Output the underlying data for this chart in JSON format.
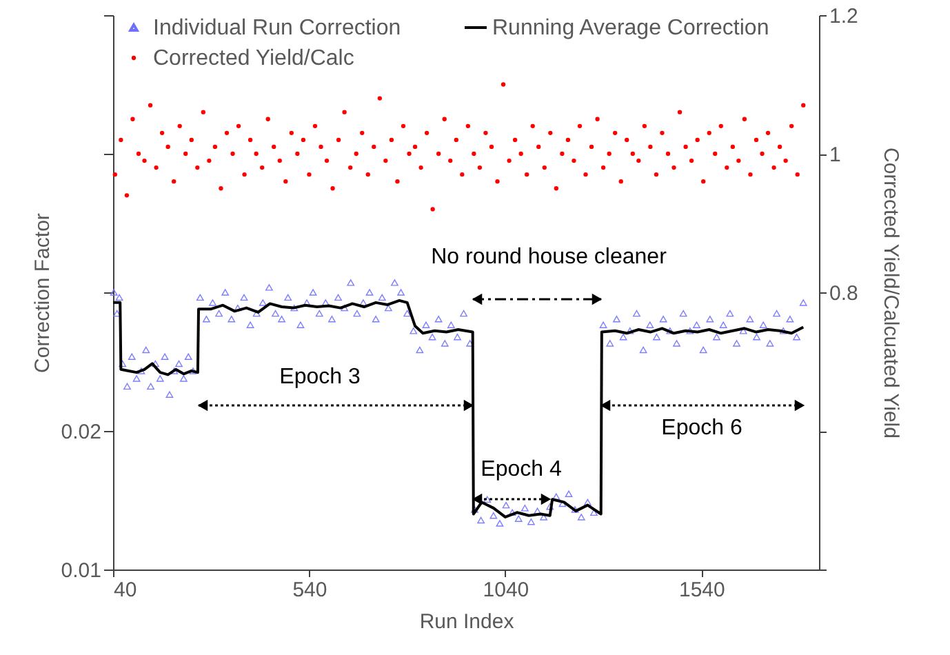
{
  "chart_data": {
    "type": "scatter",
    "log": "y",
    "xlabel": "Run Index",
    "ylabel": "Correction Factor",
    "y2label": "Corrected Yield/Calcuated Yield",
    "xlim": [
      40,
      1840
    ],
    "xticks": [
      40,
      540,
      1040,
      1540
    ],
    "ylim": [
      0.01,
      0.16
    ],
    "yticks": [
      0.01,
      0.02,
      {
        "value": 0.04,
        "label": null
      },
      {
        "value": 0.08,
        "label": null
      },
      {
        "value": 0.16,
        "label": null
      }
    ],
    "y2lim": [
      0.4,
      1.2
    ],
    "y2ticks": [
      {
        "value": 0.4,
        "label": null
      },
      {
        "value": 0.6,
        "label": null
      },
      0.8,
      1,
      1.2
    ],
    "grid": false,
    "legend": "top",
    "series": [
      {
        "name": "Individual Run Correction",
        "marker": "triangle",
        "color": "#7070ff",
        "x": [
          42,
          50,
          56,
          64,
          76,
          88,
          100,
          112,
          124,
          136,
          148,
          160,
          172,
          184,
          196,
          208,
          220,
          232,
          244,
          262,
          278,
          294,
          310,
          326,
          342,
          358,
          374,
          390,
          406,
          422,
          438,
          454,
          470,
          486,
          502,
          518,
          534,
          550,
          566,
          582,
          598,
          614,
          630,
          646,
          662,
          678,
          694,
          710,
          726,
          742,
          758,
          774,
          790,
          806,
          822,
          838,
          854,
          870,
          886,
          902,
          918,
          934,
          950,
          962,
          978,
          994,
          1010,
          1026,
          1042,
          1058,
          1074,
          1090,
          1106,
          1122,
          1138,
          1154,
          1170,
          1186,
          1202,
          1218,
          1234,
          1250,
          1266,
          1290,
          1307,
          1324,
          1341,
          1358,
          1375,
          1392,
          1409,
          1426,
          1443,
          1460,
          1477,
          1494,
          1511,
          1528,
          1545,
          1562,
          1579,
          1596,
          1613,
          1630,
          1647,
          1664,
          1681,
          1698,
          1715,
          1732,
          1749,
          1766,
          1783,
          1800
        ],
        "values": [
          0.04,
          0.036,
          0.039,
          0.028,
          0.025,
          0.029,
          0.026,
          0.027,
          0.03,
          0.025,
          0.028,
          0.026,
          0.029,
          0.024,
          0.027,
          0.028,
          0.026,
          0.029,
          0.027,
          0.039,
          0.035,
          0.038,
          0.036,
          0.04,
          0.035,
          0.037,
          0.039,
          0.034,
          0.036,
          0.038,
          0.041,
          0.036,
          0.035,
          0.039,
          0.037,
          0.034,
          0.038,
          0.04,
          0.036,
          0.038,
          0.035,
          0.039,
          0.037,
          0.042,
          0.036,
          0.038,
          0.04,
          0.035,
          0.039,
          0.037,
          0.042,
          0.04,
          0.036,
          0.033,
          0.03,
          0.034,
          0.032,
          0.035,
          0.031,
          0.034,
          0.032,
          0.036,
          0.031,
          0.0135,
          0.0128,
          0.0142,
          0.0131,
          0.0126,
          0.0138,
          0.0133,
          0.0129,
          0.0136,
          0.0127,
          0.0134,
          0.013,
          0.0137,
          0.0144,
          0.0139,
          0.0146,
          0.0135,
          0.013,
          0.014,
          0.0133,
          0.034,
          0.031,
          0.035,
          0.032,
          0.033,
          0.036,
          0.03,
          0.034,
          0.032,
          0.035,
          0.033,
          0.031,
          0.036,
          0.033,
          0.034,
          0.03,
          0.035,
          0.032,
          0.034,
          0.036,
          0.031,
          0.033,
          0.035,
          0.032,
          0.034,
          0.031,
          0.036,
          0.033,
          0.035,
          0.032,
          0.038
        ]
      },
      {
        "name": "Running Average Correction",
        "type": "line",
        "marker": "none",
        "color": "#000000",
        "x": [
          40,
          58,
          60,
          80,
          100,
          120,
          140,
          160,
          180,
          200,
          220,
          240,
          256,
          258,
          290,
          320,
          350,
          380,
          410,
          440,
          470,
          500,
          530,
          560,
          590,
          620,
          650,
          680,
          710,
          740,
          770,
          790,
          810,
          830,
          860,
          890,
          920,
          957,
          959,
          980,
          1010,
          1040,
          1070,
          1100,
          1130,
          1154,
          1160,
          1190,
          1220,
          1250,
          1284,
          1286,
          1320,
          1350,
          1380,
          1410,
          1440,
          1470,
          1500,
          1530,
          1560,
          1590,
          1620,
          1650,
          1680,
          1710,
          1740,
          1770,
          1800
        ],
        "values": [
          0.038,
          0.038,
          0.0272,
          0.027,
          0.0268,
          0.0272,
          0.028,
          0.0268,
          0.0265,
          0.0272,
          0.0266,
          0.027,
          0.0268,
          0.0368,
          0.0368,
          0.0375,
          0.0364,
          0.037,
          0.0362,
          0.0378,
          0.0372,
          0.037,
          0.0375,
          0.0372,
          0.0374,
          0.037,
          0.0378,
          0.0372,
          0.038,
          0.0376,
          0.0384,
          0.038,
          0.0338,
          0.0326,
          0.033,
          0.0328,
          0.0332,
          0.0328,
          0.0132,
          0.014,
          0.0136,
          0.013,
          0.0133,
          0.0131,
          0.0132,
          0.0131,
          0.0142,
          0.014,
          0.0134,
          0.0138,
          0.0132,
          0.0328,
          0.033,
          0.0326,
          0.0332,
          0.0328,
          0.0334,
          0.0326,
          0.033,
          0.0328,
          0.0332,
          0.0326,
          0.033,
          0.0334,
          0.0328,
          0.0332,
          0.033,
          0.0326,
          0.0336
        ]
      },
      {
        "name": "Corrected Yield/Calc",
        "marker": "circle",
        "color": "#ff0000",
        "axis": "y2",
        "x": [
          45,
          60,
          75,
          90,
          105,
          120,
          135,
          150,
          165,
          180,
          195,
          210,
          225,
          240,
          255,
          270,
          285,
          300,
          315,
          330,
          345,
          360,
          375,
          390,
          405,
          420,
          435,
          450,
          465,
          480,
          495,
          510,
          525,
          540,
          555,
          570,
          585,
          600,
          615,
          630,
          645,
          660,
          675,
          690,
          705,
          720,
          735,
          750,
          765,
          780,
          795,
          810,
          825,
          840,
          855,
          870,
          885,
          900,
          915,
          930,
          945,
          960,
          975,
          990,
          1005,
          1020,
          1035,
          1050,
          1065,
          1080,
          1095,
          1110,
          1125,
          1140,
          1155,
          1170,
          1185,
          1200,
          1215,
          1230,
          1245,
          1260,
          1275,
          1290,
          1305,
          1320,
          1335,
          1350,
          1365,
          1380,
          1395,
          1410,
          1425,
          1440,
          1455,
          1470,
          1485,
          1500,
          1515,
          1530,
          1545,
          1560,
          1575,
          1590,
          1605,
          1620,
          1635,
          1650,
          1665,
          1680,
          1695,
          1710,
          1725,
          1740,
          1755,
          1770,
          1785,
          1800
        ],
        "values": [
          0.97,
          1.02,
          0.94,
          1.05,
          1.0,
          0.99,
          1.07,
          0.98,
          1.03,
          1.01,
          0.96,
          1.04,
          1.0,
          1.02,
          0.98,
          1.06,
          0.99,
          1.01,
          0.95,
          1.03,
          1.0,
          1.04,
          0.97,
          1.02,
          1.0,
          0.98,
          1.05,
          1.01,
          0.99,
          0.96,
          1.03,
          1.0,
          1.02,
          0.97,
          1.04,
          1.01,
          0.99,
          0.95,
          1.02,
          1.06,
          0.98,
          1.0,
          1.03,
          0.97,
          1.01,
          1.08,
          0.99,
          1.02,
          0.96,
          1.04,
          1.0,
          1.01,
          0.98,
          1.03,
          0.92,
          1.0,
          1.05,
          0.99,
          1.02,
          0.97,
          1.04,
          1.0,
          0.98,
          1.03,
          1.01,
          0.96,
          1.1,
          0.99,
          1.02,
          1.0,
          0.97,
          1.04,
          1.01,
          0.98,
          1.03,
          0.95,
          1.0,
          1.02,
          0.99,
          1.04,
          0.97,
          1.01,
          1.05,
          0.98,
          1.0,
          1.03,
          0.96,
          1.02,
          1.0,
          0.99,
          1.04,
          1.01,
          0.97,
          1.03,
          1.0,
          0.98,
          1.06,
          1.01,
          0.99,
          1.02,
          0.96,
          1.03,
          1.0,
          1.04,
          0.98,
          1.01,
          0.99,
          1.05,
          0.97,
          1.02,
          1.0,
          1.03,
          0.98,
          1.01,
          0.99,
          1.04,
          0.97,
          1.07
        ]
      }
    ],
    "annotations": [
      "Epoch 3",
      "Epoch 4",
      "Epoch 6",
      "No round house cleaner"
    ]
  }
}
